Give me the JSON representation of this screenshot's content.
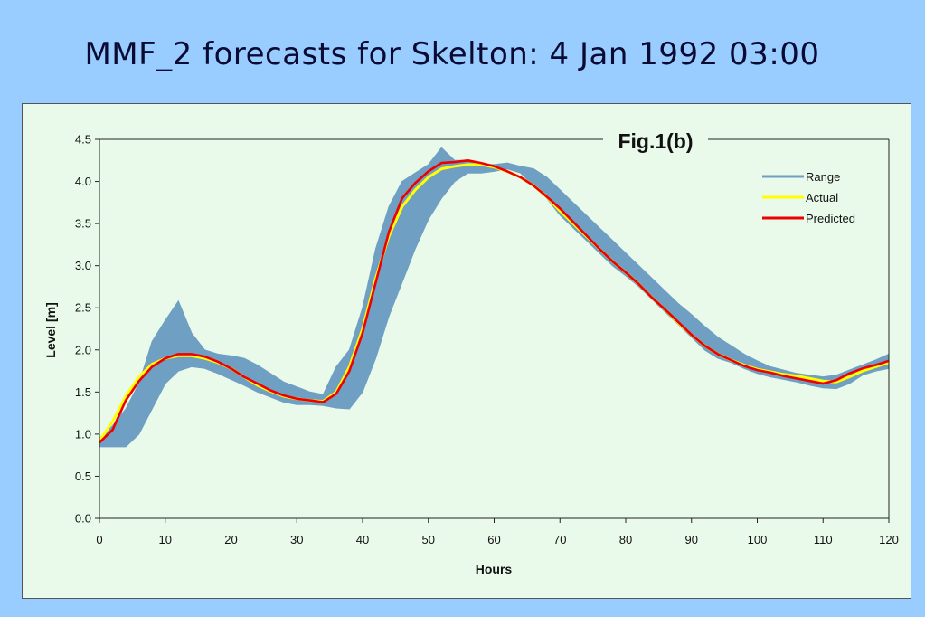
{
  "slide": {
    "title": "MMF_2 forecasts for Skelton: 4 Jan 1992 03:00"
  },
  "chart_data": {
    "type": "line",
    "title": "Fig.1(b)",
    "xlabel": "Hours",
    "ylabel": "Level [m]",
    "xlim": [
      0,
      120
    ],
    "ylim": [
      0,
      4.5
    ],
    "x_ticks": [
      "0",
      "10",
      "20",
      "30",
      "40",
      "50",
      "60",
      "70",
      "80",
      "90",
      "100",
      "110",
      "120"
    ],
    "y_ticks": [
      "0.0",
      "0.5",
      "1.0",
      "1.5",
      "2.0",
      "2.5",
      "3.0",
      "3.5",
      "4.0",
      "4.5"
    ],
    "grid": false,
    "legend_position": "top-right",
    "colors": {
      "range": "#6f9fc2",
      "actual": "#ffff00",
      "predicted": "#ee0000"
    },
    "x": [
      0,
      2,
      4,
      6,
      8,
      10,
      12,
      14,
      16,
      18,
      20,
      22,
      24,
      26,
      28,
      30,
      32,
      34,
      36,
      38,
      40,
      42,
      44,
      46,
      48,
      50,
      52,
      54,
      56,
      58,
      60,
      62,
      64,
      66,
      68,
      70,
      72,
      74,
      76,
      78,
      80,
      82,
      84,
      86,
      88,
      90,
      92,
      94,
      96,
      98,
      100,
      102,
      104,
      106,
      108,
      110,
      112,
      114,
      116,
      118,
      120
    ],
    "series": [
      {
        "name": "Range",
        "style": "band",
        "lower": [
          0.85,
          0.85,
          0.85,
          1.0,
          1.3,
          1.6,
          1.75,
          1.8,
          1.78,
          1.72,
          1.65,
          1.58,
          1.5,
          1.44,
          1.38,
          1.35,
          1.35,
          1.34,
          1.31,
          1.3,
          1.5,
          1.9,
          2.4,
          2.8,
          3.2,
          3.55,
          3.8,
          4.0,
          4.1,
          4.1,
          4.12,
          4.15,
          4.1,
          3.95,
          3.8,
          3.6,
          3.45,
          3.3,
          3.15,
          3.0,
          2.88,
          2.75,
          2.6,
          2.45,
          2.3,
          2.15,
          2.0,
          1.9,
          1.85,
          1.78,
          1.72,
          1.68,
          1.65,
          1.62,
          1.58,
          1.55,
          1.54,
          1.6,
          1.7,
          1.75,
          1.78
        ],
        "upper": [
          0.95,
          1.1,
          1.3,
          1.6,
          2.1,
          2.35,
          2.58,
          2.2,
          2.0,
          1.95,
          1.93,
          1.9,
          1.82,
          1.72,
          1.62,
          1.56,
          1.5,
          1.47,
          1.8,
          2.0,
          2.5,
          3.2,
          3.7,
          4.0,
          4.1,
          4.2,
          4.4,
          4.25,
          4.25,
          4.2,
          4.2,
          4.22,
          4.18,
          4.15,
          4.05,
          3.9,
          3.75,
          3.6,
          3.45,
          3.3,
          3.15,
          3.0,
          2.85,
          2.7,
          2.55,
          2.42,
          2.28,
          2.15,
          2.05,
          1.95,
          1.87,
          1.8,
          1.76,
          1.72,
          1.7,
          1.68,
          1.7,
          1.76,
          1.82,
          1.88,
          1.95
        ]
      },
      {
        "name": "Actual",
        "style": "line",
        "values": [
          0.92,
          1.15,
          1.45,
          1.68,
          1.83,
          1.9,
          1.93,
          1.93,
          1.9,
          1.85,
          1.78,
          1.68,
          1.58,
          1.51,
          1.45,
          1.42,
          1.4,
          1.39,
          1.5,
          1.8,
          2.25,
          2.85,
          3.35,
          3.7,
          3.9,
          4.05,
          4.15,
          4.18,
          4.2,
          4.2,
          4.17,
          4.12,
          4.05,
          3.95,
          3.82,
          3.65,
          3.5,
          3.35,
          3.2,
          3.05,
          2.92,
          2.78,
          2.62,
          2.48,
          2.32,
          2.18,
          2.05,
          1.95,
          1.88,
          1.82,
          1.77,
          1.74,
          1.71,
          1.69,
          1.66,
          1.63,
          1.62,
          1.68,
          1.75,
          1.8,
          1.85
        ]
      },
      {
        "name": "Predicted",
        "style": "line",
        "values": [
          0.9,
          1.05,
          1.4,
          1.63,
          1.8,
          1.9,
          1.95,
          1.95,
          1.92,
          1.86,
          1.78,
          1.68,
          1.6,
          1.52,
          1.46,
          1.42,
          1.4,
          1.38,
          1.48,
          1.75,
          2.2,
          2.8,
          3.4,
          3.8,
          3.98,
          4.12,
          4.22,
          4.23,
          4.25,
          4.22,
          4.18,
          4.12,
          4.05,
          3.95,
          3.82,
          3.68,
          3.52,
          3.36,
          3.2,
          3.05,
          2.92,
          2.78,
          2.62,
          2.48,
          2.33,
          2.18,
          2.05,
          1.95,
          1.88,
          1.81,
          1.76,
          1.73,
          1.69,
          1.66,
          1.63,
          1.6,
          1.64,
          1.72,
          1.78,
          1.82,
          1.87
        ]
      }
    ]
  }
}
